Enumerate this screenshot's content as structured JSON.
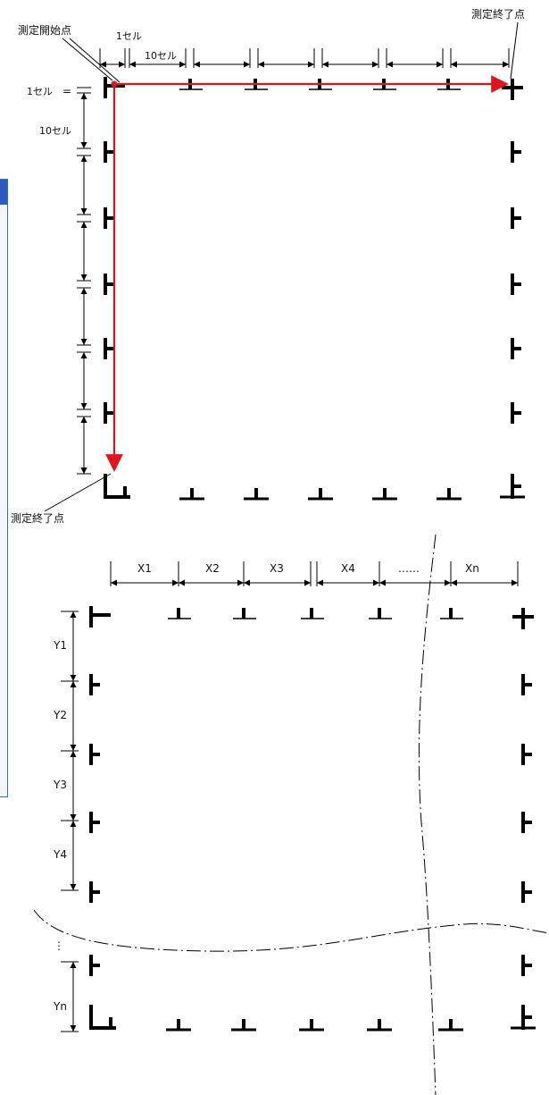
{
  "colors": {
    "ink": "#000000",
    "path": "#e0151b",
    "window_border": "#3a66c4"
  },
  "top_diagram": {
    "start_label": "測定開始点",
    "end_label_right": "測定終了点",
    "end_label_bottom": "測定終了点",
    "one_cell_top": "1セル",
    "ten_cell_top": "10セル",
    "one_cell_left": "1セル",
    "ten_cell_left": "10セル",
    "equal_mark": "="
  },
  "bottom_diagram": {
    "x_labels": [
      "X1",
      "X2",
      "X3",
      "X4",
      "……",
      "Xn"
    ],
    "y_labels": [
      "Y1",
      "Y2",
      "Y3",
      "Y4",
      "Yn"
    ],
    "ellipsis_vertical": "⋮"
  }
}
